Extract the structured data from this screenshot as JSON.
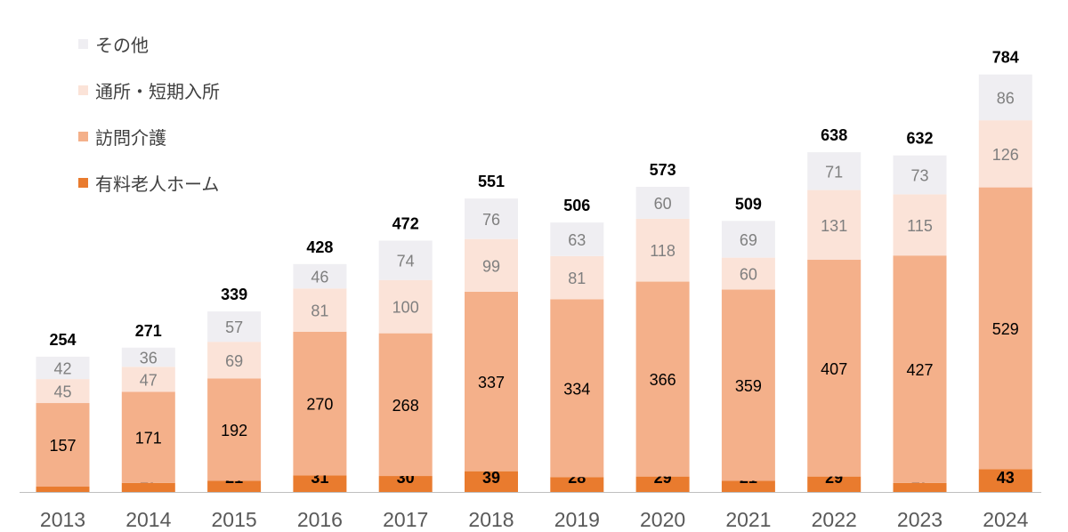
{
  "chart_data": {
    "type": "stacked-bar",
    "categories": [
      "2013",
      "2014",
      "2015",
      "2016",
      "2017",
      "2018",
      "2019",
      "2020",
      "2021",
      "2022",
      "2023",
      "2024"
    ],
    "series": [
      {
        "name": "有料老人ホーム",
        "color": "#e97b2e",
        "label_color": "#000000",
        "label_bold": true,
        "values": [
          10,
          17,
          21,
          31,
          30,
          39,
          28,
          29,
          21,
          29,
          17,
          43
        ]
      },
      {
        "name": "訪問介護",
        "color": "#f4b08a",
        "label_color": "#000000",
        "label_bold": false,
        "values": [
          157,
          171,
          192,
          270,
          268,
          337,
          334,
          366,
          359,
          407,
          427,
          529
        ]
      },
      {
        "name": "通所・短期入所",
        "color": "#fbe3d8",
        "label_color": "#7f7f7f",
        "label_bold": false,
        "values": [
          45,
          47,
          69,
          81,
          100,
          99,
          81,
          118,
          60,
          131,
          115,
          126
        ]
      },
      {
        "name": "その他",
        "color": "#efeef2",
        "label_color": "#7f7f7f",
        "label_bold": false,
        "values": [
          42,
          36,
          57,
          46,
          74,
          76,
          63,
          60,
          69,
          71,
          73,
          86
        ]
      }
    ],
    "totals": [
      254,
      271,
      339,
      428,
      472,
      551,
      506,
      573,
      509,
      638,
      632,
      784
    ],
    "legend_order": [
      "その他",
      "通所・短期入所",
      "訪問介護",
      "有料老人ホーム"
    ],
    "legend_position": "top-left",
    "axis_color": "#bfbfbf"
  }
}
